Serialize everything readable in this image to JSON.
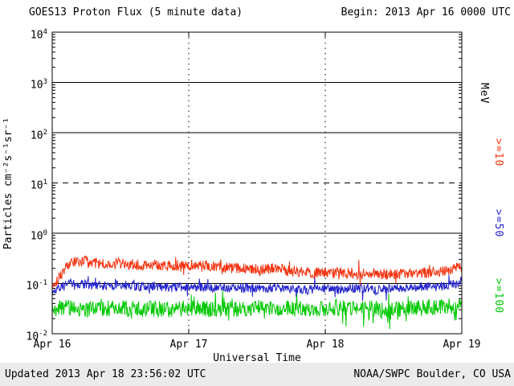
{
  "header": {
    "title": "GOES13 Proton Flux (5 minute data)",
    "begin_label": "Begin: 2013 Apr 16 0000 UTC"
  },
  "footer": {
    "updated": "Updated 2013 Apr 18 23:56:02 UTC",
    "source": "NOAA/SWPC Boulder, CO USA"
  },
  "axes": {
    "ylabel": "Particles cm⁻²s⁻¹sr⁻¹",
    "xlabel": "Universal Time",
    "x_ticks": [
      "Apr 16",
      "Apr 17",
      "Apr 18",
      "Apr 19"
    ],
    "y_ticks": [
      {
        "base": "10",
        "exp": "4"
      },
      {
        "base": "10",
        "exp": "3"
      },
      {
        "base": "10",
        "exp": "2"
      },
      {
        "base": "10",
        "exp": "1"
      },
      {
        "base": "10",
        "exp": "0"
      },
      {
        "base": "10",
        "exp": "-1"
      },
      {
        "base": "10",
        "exp": "-2"
      }
    ]
  },
  "right_legend": {
    "unit": "MeV",
    "unit_color": "#000000",
    "items": [
      {
        "label": ">=10",
        "color": "#f5320f"
      },
      {
        "label": ">=50",
        "color": "#2222cc"
      },
      {
        "label": ">=100",
        "color": "#00c800"
      }
    ]
  },
  "chart_data": {
    "type": "line",
    "title": "GOES13 Proton Flux (5 minute data)",
    "begin": "2013 Apr 16 0000 UTC",
    "updated": "2013 Apr 18 23:56:02 UTC",
    "xlabel": "Universal Time",
    "ylabel": "Particles cm-2 s-1 sr-1",
    "x_days": [
      "Apr 16",
      "Apr 17",
      "Apr 18",
      "Apr 19"
    ],
    "x_range_days": 3,
    "y_scale": "log10",
    "y_log10_range": [
      -2,
      4
    ],
    "samples_per_series": 864,
    "sample_interval_minutes": 5,
    "gridlines": {
      "solid_log10": [
        3,
        2,
        0,
        -1
      ],
      "dashed_log10": [
        1
      ],
      "vertical_dotted_at_day": [
        1,
        2
      ]
    },
    "legend_position": "right-outside",
    "series": [
      {
        "name": ">=10 MeV",
        "color": "#f5320f",
        "seed": 101,
        "noise_log10": 0.11,
        "trend_hours_step": 3,
        "trend_log10": [
          -1.05,
          -0.6,
          -0.55,
          -0.62,
          -0.6,
          -0.63,
          -0.62,
          -0.65,
          -0.67,
          -0.65,
          -0.68,
          -0.7,
          -0.72,
          -0.7,
          -0.75,
          -0.78,
          -0.8,
          -0.78,
          -0.82,
          -0.8,
          -0.82,
          -0.8,
          -0.78,
          -0.75,
          -0.68
        ],
        "approx_flux_range": [
          0.09,
          0.45
        ]
      },
      {
        "name": ">=50 MeV",
        "color": "#2222cc",
        "seed": 202,
        "noise_log10": 0.09,
        "trend_hours_step": 3,
        "trend_log10": [
          -1.15,
          -1.0,
          -1.02,
          -1.05,
          -1.03,
          -1.06,
          -1.05,
          -1.08,
          -1.06,
          -1.08,
          -1.1,
          -1.08,
          -1.1,
          -1.08,
          -1.1,
          -1.12,
          -1.1,
          -1.12,
          -1.1,
          -1.12,
          -1.1,
          -1.08,
          -1.06,
          -1.04,
          -0.98
        ],
        "approx_flux_range": [
          0.04,
          0.15
        ]
      },
      {
        "name": ">=100 MeV",
        "color": "#00c800",
        "seed": 303,
        "noise_log10": 0.16,
        "trend_hours_step": 3,
        "trend_log10": [
          -1.5,
          -1.48,
          -1.52,
          -1.5,
          -1.48,
          -1.52,
          -1.5,
          -1.52,
          -1.48,
          -1.5,
          -1.52,
          -1.5,
          -1.48,
          -1.52,
          -1.5,
          -1.52,
          -1.5,
          -1.48,
          -1.52,
          -1.5,
          -1.52,
          -1.5,
          -1.48,
          -1.46,
          -1.44
        ],
        "approx_flux_range": [
          0.012,
          0.09
        ]
      }
    ]
  }
}
